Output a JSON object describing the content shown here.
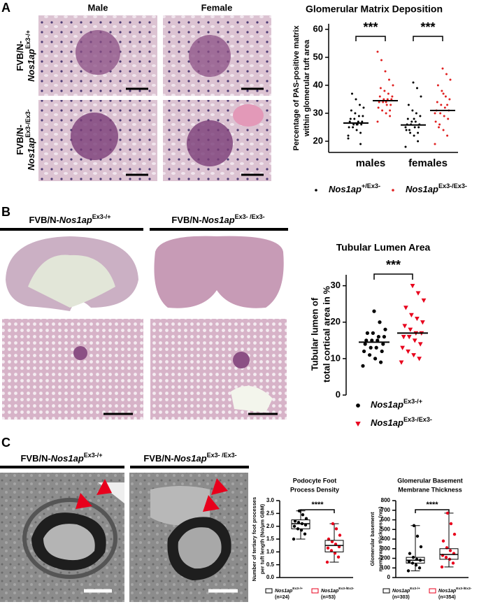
{
  "figure": {
    "panel_A": {
      "letter": "A",
      "col_headers": [
        "Male",
        "Female"
      ],
      "row_labels": [
        {
          "prefix": "FVB/N-",
          "gene": "Nos1ap",
          "sup": "Ex3-/+"
        },
        {
          "prefix": "FVB/N-",
          "gene": "Nos1ap",
          "sup": "Ex3-/Ex3-"
        }
      ]
    },
    "panel_B": {
      "letter": "B",
      "headers": [
        {
          "prefix": "FVB/N-",
          "gene": "Nos1ap",
          "sup": "Ex3-/+"
        },
        {
          "prefix": "FVB/N-",
          "gene": "Nos1ap",
          "sup": "Ex3- /Ex3-"
        }
      ]
    },
    "panel_C": {
      "letter": "C",
      "headers": [
        {
          "prefix": "FVB/N-",
          "gene": "Nos1ap",
          "sup": "Ex3-/+"
        },
        {
          "prefix": "FVB/N-",
          "gene": "Nos1ap",
          "sup": "Ex3- /Ex3-"
        }
      ]
    }
  },
  "chart_data": [
    {
      "type": "dot",
      "title": [
        "Glomerular Matrix Deposition"
      ],
      "y_label": [
        "Percentage of PAS-positive matrix",
        "within glomerular tuft area"
      ],
      "categories": [
        "males",
        "females"
      ],
      "significance": [
        "***",
        "***"
      ],
      "ylim": [
        16,
        62
      ],
      "yticks": [
        20,
        30,
        40,
        50,
        60
      ],
      "series": [
        {
          "name": "Nos1ap",
          "name_sup": "+/Ex3-",
          "color": "#000000",
          "marker": "dot",
          "values": [
            [
              21,
              23,
              24,
              25,
              25,
              26,
              26,
              26,
              27,
              27,
              27,
              28,
              28,
              29,
              29,
              30,
              31,
              32,
              33,
              35,
              37,
              22,
              19,
              26
            ],
            [
              18,
              20,
              22,
              23,
              24,
              25,
              25,
              26,
              26,
              26,
              27,
              27,
              28,
              29,
              30,
              31,
              33,
              36,
              39,
              41,
              24,
              25,
              23,
              28
            ]
          ],
          "means": [
            26.5,
            25.8
          ]
        },
        {
          "name": "Nos1ap",
          "name_sup": "Ex3-/Ex3-",
          "color": "#e02020",
          "marker": "dot",
          "values": [
            [
              27,
              29,
              30,
              31,
              32,
              33,
              33,
              34,
              34,
              35,
              35,
              35,
              36,
              36,
              37,
              38,
              39,
              40,
              42,
              45,
              49,
              52,
              31,
              34
            ],
            [
              19,
              22,
              24,
              26,
              27,
              28,
              29,
              30,
              31,
              31,
              32,
              33,
              34,
              35,
              36,
              38,
              40,
              42,
              44,
              46,
              25,
              30,
              33,
              37
            ]
          ],
          "means": [
            34.5,
            31
          ]
        }
      ]
    },
    {
      "type": "dot",
      "title": [
        "Tubular  Lumen Area"
      ],
      "y_label": [
        "Tubular lumen of",
        "total cortical area in %"
      ],
      "significance": [
        "***"
      ],
      "ylim": [
        0,
        33
      ],
      "yticks": [
        0,
        10,
        20,
        30
      ],
      "series": [
        {
          "name": "Nos1ap",
          "name_sup": "Ex3-/+",
          "color": "#000000",
          "marker": "circle",
          "values": [
            [
              8,
              9,
              10,
              11,
              12,
              12,
              13,
              13,
              14,
              14,
              15,
              15,
              15,
              16,
              16,
              17,
              17,
              18,
              20,
              23
            ]
          ],
          "means": [
            14.5
          ]
        },
        {
          "name": "Nos1ap",
          "name_sup": "Ex3-/Ex3-",
          "color": "#e8001c",
          "marker": "triangle",
          "values": [
            [
              9,
              10,
              11,
              12,
              13,
              14,
              15,
              16,
              16,
              17,
              17,
              18,
              19,
              20,
              21,
              22,
              24,
              26,
              28,
              30
            ]
          ],
          "means": [
            17
          ]
        }
      ]
    },
    {
      "type": "box",
      "title": [
        "Podocyte Foot",
        "Process Density"
      ],
      "y_label": [
        "Number of tertiary foot processes",
        "per tuft length (No/µm GBM)"
      ],
      "significance": [
        "****"
      ],
      "ylim": [
        0,
        3
      ],
      "yticks": [
        {
          "value": 0,
          "label": "0.0"
        },
        {
          "value": 0.5,
          "label": "0.5"
        },
        {
          "value": 1,
          "label": "1.0"
        },
        {
          "value": 1.5,
          "label": "1.5"
        },
        {
          "value": 2,
          "label": "2.0"
        },
        {
          "value": 2.5,
          "label": "2.5"
        },
        {
          "value": 3,
          "label": "3.0"
        }
      ],
      "series": [
        {
          "name": "Nos1ap",
          "name_sup": "Ex3-/+",
          "n_label": "(n=24)",
          "color": "#000000",
          "stats": {
            "min": 1.5,
            "q1": 1.9,
            "median": 2.1,
            "q3": 2.25,
            "max": 2.6
          },
          "points": [
            1.5,
            1.7,
            1.85,
            1.9,
            2.0,
            2.05,
            2.1,
            2.15,
            2.2,
            2.3,
            2.45,
            2.6
          ]
        },
        {
          "name": "Nos1ap",
          "name_sup": "Ex3-/Ex3-",
          "n_label": "(n=53)",
          "color": "#e8001c",
          "stats": {
            "min": 0.6,
            "q1": 1.0,
            "median": 1.25,
            "q3": 1.45,
            "max": 2.1
          },
          "points": [
            0.6,
            0.8,
            0.95,
            1.05,
            1.15,
            1.2,
            1.3,
            1.4,
            1.5,
            1.65,
            1.9,
            2.1
          ]
        }
      ]
    },
    {
      "type": "box",
      "title": [
        "Glomerular Basement",
        "Membrane Thickness"
      ],
      "y_label": [
        "Glomerular basement",
        "membrane thickness (nm)"
      ],
      "significance": [
        "****"
      ],
      "ylim": [
        0,
        800
      ],
      "yticks": [
        0,
        100,
        200,
        300,
        400,
        500,
        600,
        700,
        800
      ],
      "series": [
        {
          "name": "Nos1ap",
          "name_sup": "Ex3-/+",
          "n_label": "(n=303)",
          "color": "#000000",
          "stats": {
            "min": 70,
            "q1": 150,
            "median": 180,
            "q3": 210,
            "max": 540
          },
          "points": [
            70,
            100,
            130,
            150,
            165,
            180,
            190,
            210,
            250,
            320,
            430,
            540
          ]
        },
        {
          "name": "Nos1ap",
          "name_sup": "Ex3-/Ex3-",
          "n_label": "(n=354)",
          "color": "#e8001c",
          "stats": {
            "min": 110,
            "q1": 190,
            "median": 240,
            "q3": 300,
            "max": 670
          },
          "points": [
            110,
            150,
            190,
            210,
            230,
            250,
            280,
            310,
            380,
            450,
            560,
            670
          ]
        }
      ]
    }
  ]
}
